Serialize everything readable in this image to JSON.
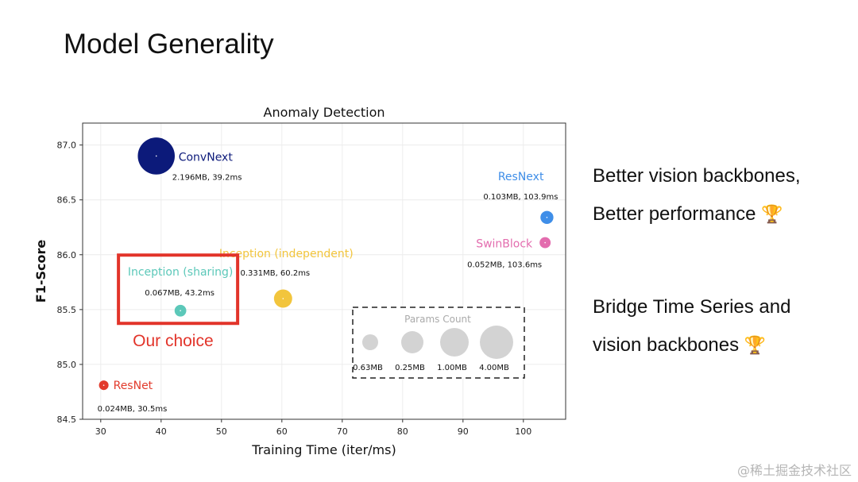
{
  "slide": {
    "title": "Model Generality",
    "bullets": [
      {
        "text": "Better vision backbones,"
      },
      {
        "text": "Better performance",
        "icon": "trophy-icon",
        "glyph": "🏆"
      },
      {
        "text": "Bridge Time Series and"
      },
      {
        "text": "vision backbones",
        "icon": "trophy-icon",
        "glyph": "🏆"
      }
    ],
    "watermark": "@稀土掘金技术社区"
  },
  "chart_data": {
    "type": "scatter",
    "title": "Anomaly Detection",
    "xlabel": "Training Time (iter/ms)",
    "ylabel": "F1-Score",
    "xlim": [
      27,
      107
    ],
    "ylim": [
      84.5,
      87.2
    ],
    "xticks": [
      30,
      40,
      50,
      60,
      70,
      80,
      90,
      100
    ],
    "yticks": [
      84.5,
      85.0,
      85.5,
      86.0,
      86.5,
      87.0
    ],
    "ytick_labels": [
      "84.5",
      "85.0",
      "85.5",
      "86.0",
      "86.5",
      "87.0"
    ],
    "grid": true,
    "points": [
      {
        "name": "ConvNext",
        "x": 39.2,
        "y": 86.9,
        "params_mb": 2.196,
        "detail": "2.196MB, 39.2ms",
        "color": "#0c1a7a"
      },
      {
        "name": "ResNext",
        "x": 103.9,
        "y": 86.34,
        "params_mb": 0.103,
        "detail": "0.103MB, 103.9ms",
        "color": "#3f8ee8"
      },
      {
        "name": "SwinBlock",
        "x": 103.6,
        "y": 86.11,
        "params_mb": 0.052,
        "detail": "0.052MB, 103.6ms",
        "color": "#e36cae"
      },
      {
        "name": "Inception (independent)",
        "x": 60.2,
        "y": 85.6,
        "params_mb": 0.331,
        "detail": "0.331MB, 60.2ms",
        "color": "#f2c53d"
      },
      {
        "name": "Inception (sharing)",
        "x": 43.2,
        "y": 85.49,
        "params_mb": 0.067,
        "detail": "0.067MB, 43.2ms",
        "color": "#5cc8b9"
      },
      {
        "name": "ResNet",
        "x": 30.5,
        "y": 84.81,
        "params_mb": 0.024,
        "detail": "0.024MB, 30.5ms",
        "color": "#e23b2c"
      }
    ],
    "highlight": {
      "label": "Our choice",
      "target": "Inception (sharing)",
      "color": "#e2342a"
    },
    "size_legend": {
      "title": "Params Count",
      "items": [
        "0.63MB",
        "0.25MB",
        "1.00MB",
        "4.00MB"
      ]
    }
  }
}
